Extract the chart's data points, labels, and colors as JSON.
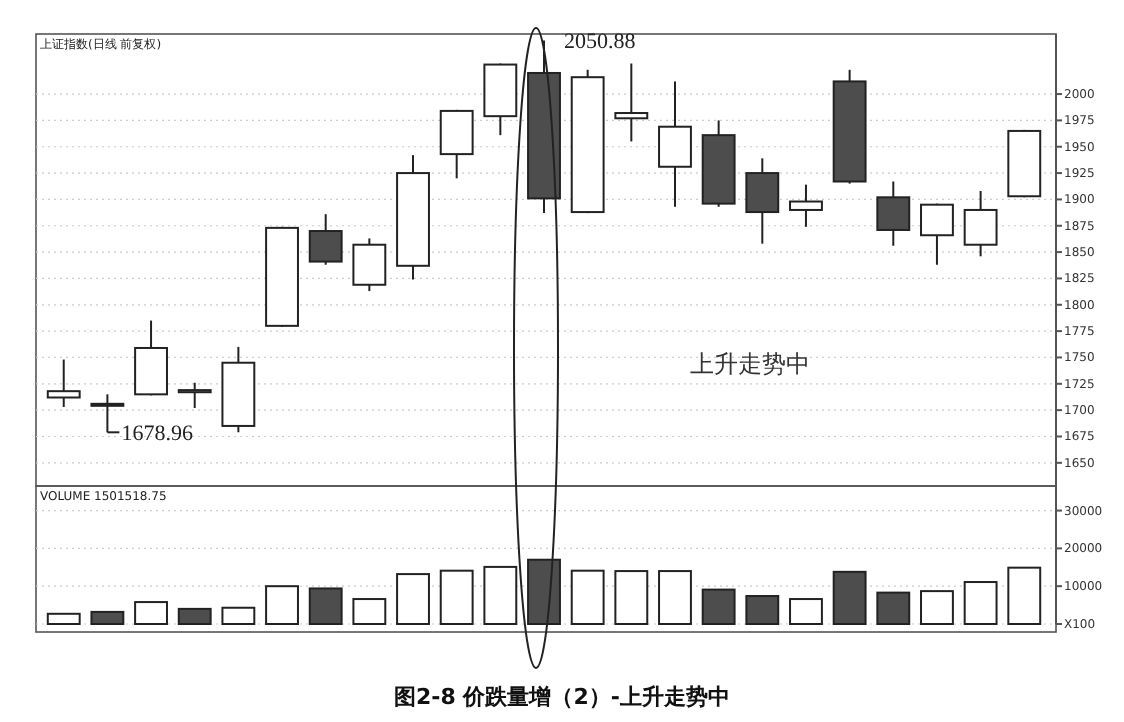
{
  "chart_data": [
    {
      "type": "candlestick",
      "title": "上证指数(日线 前复权)",
      "categories": [
        null,
        null,
        null,
        null,
        null,
        null,
        null,
        null,
        null,
        null,
        null,
        null,
        null,
        null,
        null,
        null,
        null,
        null,
        null,
        null,
        null,
        null,
        null
      ],
      "ohlc": [
        [
          1712,
          1748,
          1703,
          1718
        ],
        [
          1706,
          1715,
          1678.96,
          1706
        ],
        [
          1715,
          1785,
          1714,
          1759
        ],
        [
          1717,
          1726,
          1702,
          1719
        ],
        [
          1685,
          1760,
          1679,
          1745
        ],
        [
          1780,
          1874,
          1779,
          1873
        ],
        [
          1870,
          1886,
          1838,
          1841
        ],
        [
          1819,
          1863,
          1813,
          1857
        ],
        [
          1837,
          1942,
          1824,
          1925
        ],
        [
          1943,
          1985,
          1920,
          1984
        ],
        [
          1979,
          2029,
          1961,
          2028
        ],
        [
          2020,
          2050.88,
          1887,
          1901
        ],
        [
          1888,
          2023,
          1887,
          2016
        ],
        [
          1977,
          2029,
          1955,
          1982
        ],
        [
          1931,
          2012,
          1893,
          1969
        ],
        [
          1961,
          1975,
          1893,
          1896
        ],
        [
          1925,
          1939,
          1858,
          1888
        ],
        [
          1890,
          1914,
          1874,
          1898
        ],
        [
          2012,
          2023,
          1915,
          1917
        ],
        [
          1902,
          1917,
          1856,
          1871
        ],
        [
          1866,
          1896,
          1838,
          1895
        ],
        [
          1857,
          1908,
          1846,
          1890
        ],
        [
          1903,
          1966,
          1902,
          1965
        ]
      ],
      "colors": [
        "#ffffff",
        "#ffffff",
        "#ffffff",
        "#ffffff",
        "#ffffff",
        "#ffffff",
        "#4d4d4d",
        "#ffffff",
        "#ffffff",
        "#ffffff",
        "#ffffff",
        "#4d4d4d",
        "#ffffff",
        "#ffffff",
        "#ffffff",
        "#4d4d4d",
        "#4d4d4d",
        "#ffffff",
        "#4d4d4d",
        "#4d4d4d",
        "#ffffff",
        "#ffffff",
        "#ffffff"
      ],
      "ylim": [
        1628,
        2057
      ],
      "yticks": [
        1650,
        1675,
        1700,
        1725,
        1750,
        1775,
        1800,
        1825,
        1850,
        1875,
        1900,
        1925,
        1950,
        1975,
        2000
      ],
      "grid": "y",
      "annotations": [
        "2050.88",
        "1678.96",
        "上升走势中",
        "图2-8  价跌量增（2）-上升走势中"
      ]
    },
    {
      "type": "bar",
      "title": "VOLUME 1501518.75",
      "categories": [
        null,
        null,
        null,
        null,
        null,
        null,
        null,
        null,
        null,
        null,
        null,
        null,
        null,
        null,
        null,
        null,
        null,
        null,
        null,
        null,
        null,
        null,
        null
      ],
      "values": [
        2700,
        3200,
        5800,
        4000,
        4300,
        10000,
        9400,
        6600,
        13200,
        14100,
        15100,
        17000,
        14100,
        14000,
        14000,
        9100,
        7400,
        6600,
        13800,
        8300,
        8700,
        11100,
        14900
      ],
      "colors": [
        "#ffffff",
        "#4d4d4d",
        "#ffffff",
        "#4d4d4d",
        "#ffffff",
        "#ffffff",
        "#4d4d4d",
        "#ffffff",
        "#ffffff",
        "#ffffff",
        "#ffffff",
        "#4d4d4d",
        "#ffffff",
        "#ffffff",
        "#ffffff",
        "#4d4d4d",
        "#4d4d4d",
        "#ffffff",
        "#4d4d4d",
        "#4d4d4d",
        "#ffffff",
        "#ffffff",
        "#ffffff"
      ],
      "ylim": [
        0,
        36500
      ],
      "yticks": [
        {
          "value": 0,
          "label": "X100"
        },
        10000,
        20000,
        30000
      ],
      "grid": "y"
    }
  ]
}
